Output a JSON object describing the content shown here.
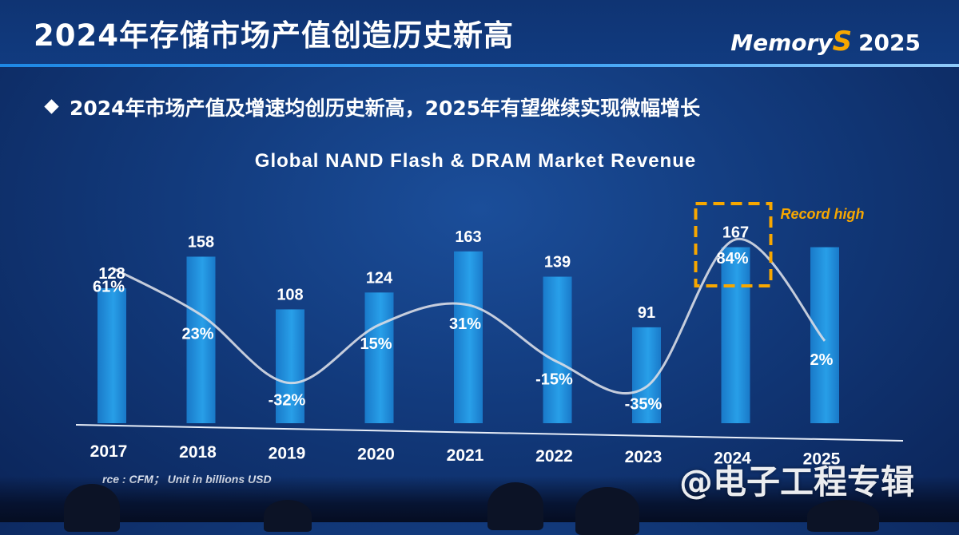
{
  "header": {
    "title": "2024年存储市场产值创造历史新高",
    "logo": {
      "prefix": "Memory",
      "mark": "S",
      "year": "2025"
    }
  },
  "subtitle": "2024年市场产值及增速均创历史新高，2025年有望继续实现微幅增长",
  "source_note": "rce : CFM； Unit in billions USD",
  "watermark": "@电子工程专辑",
  "colors": {
    "bar": "#2aa8f2",
    "bar_dark": "#1a7fd0",
    "highlight": "#f7a700",
    "line": "#d9dde6"
  },
  "chart_data": {
    "type": "bar",
    "title": "Global NAND Flash & DRAM Market Revenue",
    "categories": [
      "2017",
      "2018",
      "2019",
      "2020",
      "2021",
      "2022",
      "2023",
      "2024",
      "2025"
    ],
    "series": [
      {
        "values": [
          128,
          158,
          108,
          124,
          163,
          139,
          91,
          167,
          null
        ],
        "value_labels": [
          "128",
          "158",
          "108",
          "124",
          "163",
          "139",
          "91",
          "167",
          ""
        ]
      },
      {
        "values": [
          61,
          23,
          -32,
          15,
          31,
          -15,
          -35,
          84,
          2
        ],
        "value_labels": [
          "61%",
          "23%",
          "-32%",
          "15%",
          "31%",
          "-15%",
          "-35%",
          "84%",
          "2%"
        ]
      }
    ],
    "highlight": {
      "category": "2024",
      "label": "Record high"
    },
    "unit": "Unit in billions USD",
    "grid": false,
    "legend": "none"
  }
}
